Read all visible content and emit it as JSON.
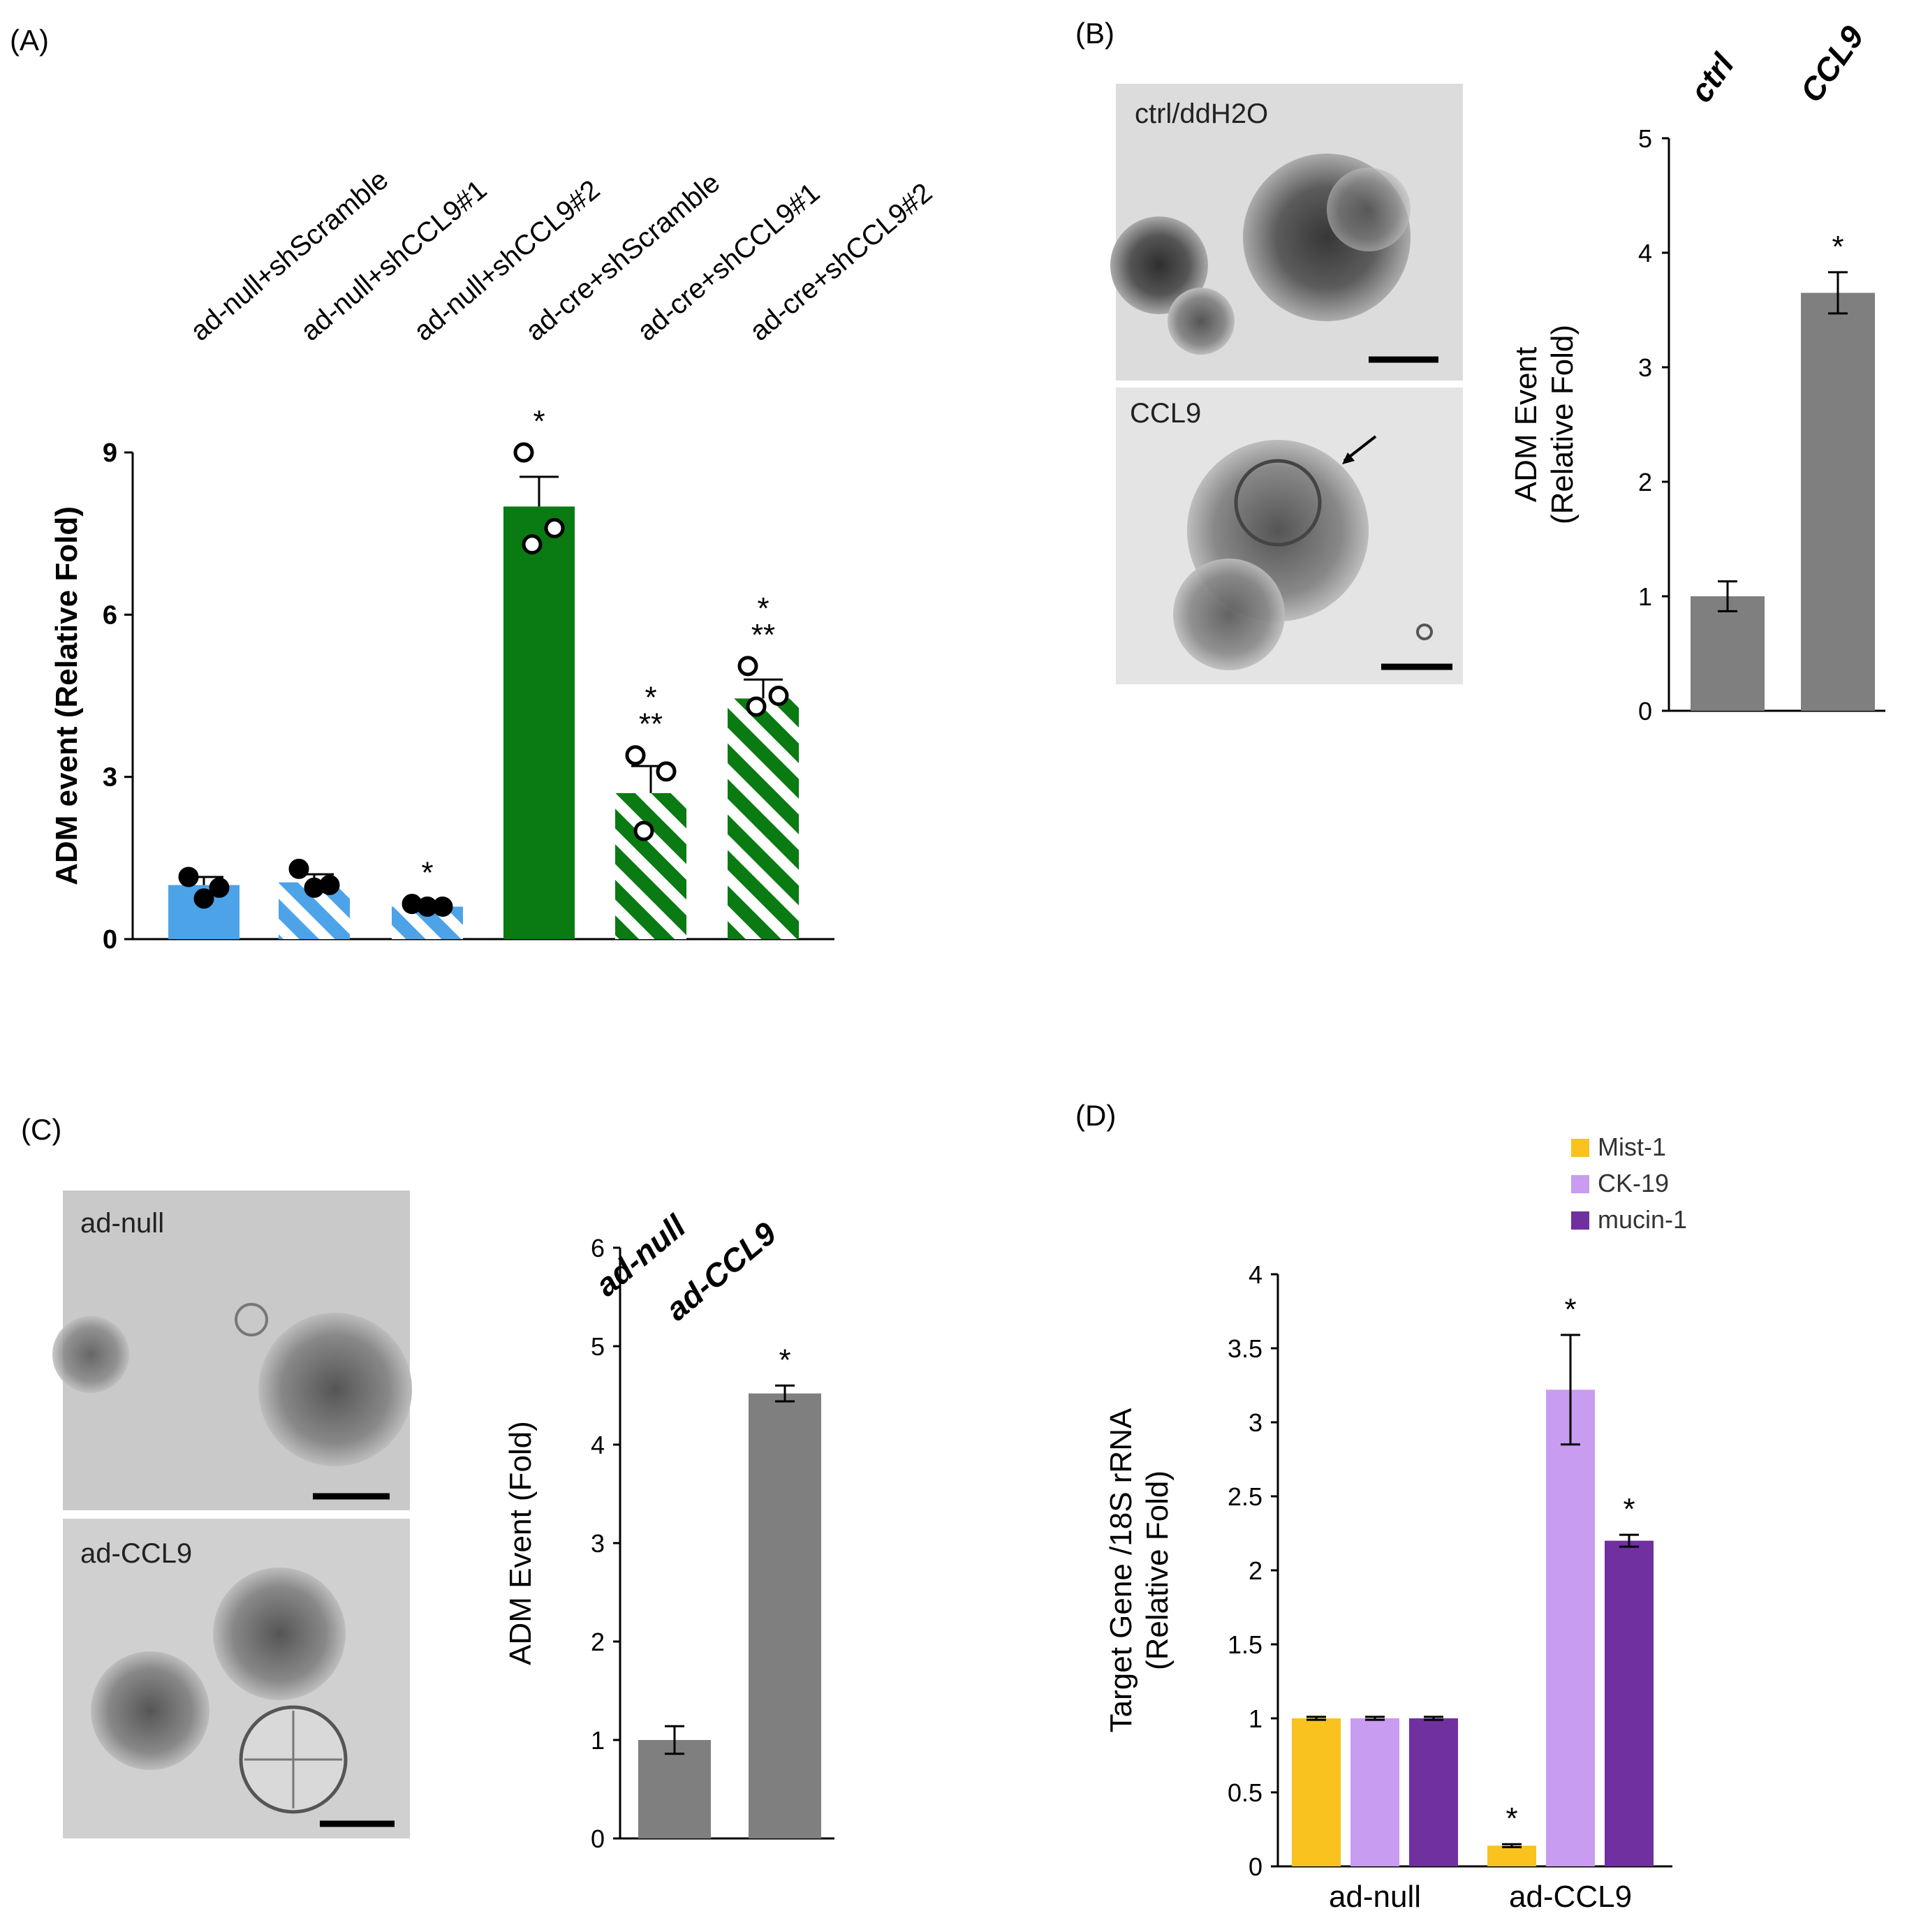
{
  "panel_labels": {
    "a": "(A)",
    "b": "(B)",
    "c": "(C)",
    "d": "(D)"
  },
  "photos": {
    "b_top": "ctrl/ddH2O",
    "b_bottom": "CCL9",
    "c_top": "ad-null",
    "c_bottom": "ad-CCL9"
  },
  "colors": {
    "blue": "#4da3e8",
    "green": "#0a7a12",
    "gray": "#7f7f7f",
    "mist1": "#f9c21e",
    "ck19": "#c89cf0",
    "mucin1": "#7030a0"
  },
  "chart_data": [
    {
      "panel": "A",
      "type": "bar",
      "ylabel": "ADM event (Relative Fold)",
      "ylim": [
        0,
        9
      ],
      "yticks": [
        0,
        3,
        6,
        9
      ],
      "categories": [
        "ad-null+shScramble",
        "ad-null+shCCL9#1",
        "ad-null+shCCL9#2",
        "ad-cre+shScramble",
        "ad-cre+shCCL9#1",
        "ad-cre+shCCL9#2"
      ],
      "values": [
        1.0,
        1.05,
        0.6,
        8.0,
        2.7,
        4.45
      ],
      "errors": [
        0.15,
        0.15,
        0.05,
        0.55,
        0.5,
        0.35
      ],
      "points": [
        [
          1.15,
          0.95,
          0.75
        ],
        [
          1.3,
          1.0,
          0.95
        ],
        [
          0.65,
          0.6,
          0.6
        ],
        [
          9.0,
          7.6,
          7.3
        ],
        [
          3.4,
          3.1,
          2.0
        ],
        [
          5.05,
          4.5,
          4.3
        ]
      ],
      "fills": [
        "solid-blue",
        "hatch-blue",
        "hatch-blue",
        "solid-green",
        "hatch-green",
        "hatch-green"
      ],
      "annotations": [
        "",
        "",
        "*",
        "*",
        "*\n**",
        "*\n**"
      ]
    },
    {
      "panel": "B",
      "type": "bar",
      "ylabel": "ADM Event\n(Relative Fold)",
      "ylim": [
        0,
        5
      ],
      "yticks": [
        0,
        1,
        2,
        3,
        4,
        5
      ],
      "categories": [
        "ctrl",
        "CCL9"
      ],
      "values": [
        1.0,
        3.65
      ],
      "errors": [
        0.13,
        0.18
      ],
      "annotations": [
        "",
        "*"
      ]
    },
    {
      "panel": "C",
      "type": "bar",
      "ylabel": "ADM Event (Fold)",
      "ylim": [
        0,
        6
      ],
      "yticks": [
        0,
        1,
        2,
        3,
        4,
        5,
        6
      ],
      "categories": [
        "ad-null",
        "ad-CCL9"
      ],
      "values": [
        1.0,
        4.52
      ],
      "errors": [
        0.14,
        0.08
      ],
      "annotations": [
        "",
        "*"
      ]
    },
    {
      "panel": "D",
      "type": "bar",
      "ylabel": "Target Gene /18S rRNA\n(Relative Fold)",
      "ylim": [
        0,
        4
      ],
      "yticks": [
        "0",
        "0.5",
        "1",
        "1.5",
        "2",
        "2.5",
        "3",
        "3.5",
        "4"
      ],
      "categories": [
        "ad-null",
        "ad-CCL9"
      ],
      "series": [
        {
          "name": "Mist-1",
          "values": [
            1.0,
            0.14
          ],
          "errors": [
            0.01,
            0.01
          ],
          "annotations": [
            "",
            "*"
          ]
        },
        {
          "name": "CK-19",
          "values": [
            1.0,
            3.22
          ],
          "errors": [
            0.01,
            0.37
          ],
          "annotations": [
            "",
            "*"
          ]
        },
        {
          "name": "mucin-1",
          "values": [
            1.0,
            2.2
          ],
          "errors": [
            0.01,
            0.04
          ],
          "annotations": [
            "",
            "*"
          ]
        }
      ]
    }
  ]
}
